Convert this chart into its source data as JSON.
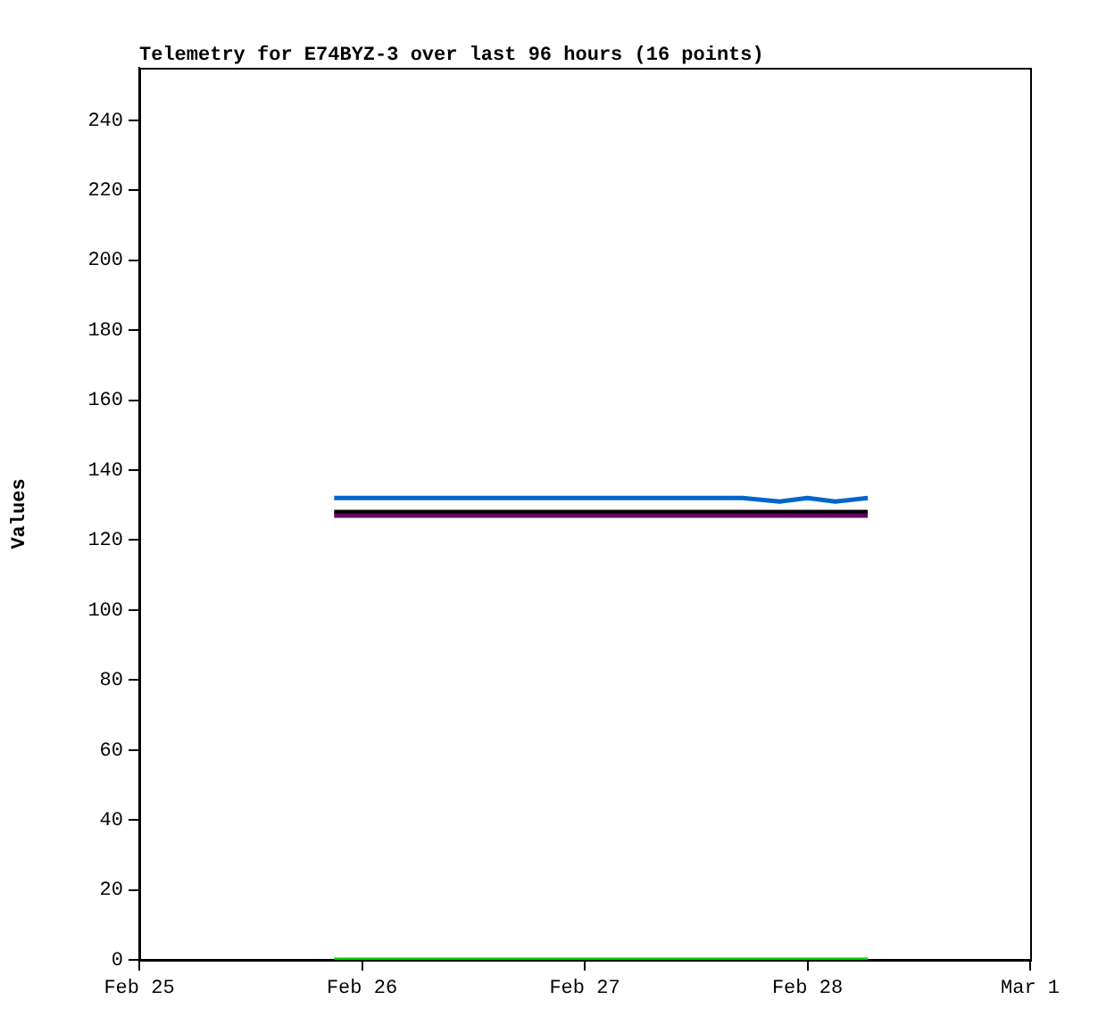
{
  "chart_data": {
    "type": "line",
    "title": "Telemetry for E74BYZ-3 over last 96 hours (16 points)",
    "ylabel": "Values",
    "x": [
      "--02-25T21:00",
      "--02-26T01:00",
      "--02-26T05:00",
      "--02-26T09:00",
      "--02-26T13:00",
      "--02-26T17:00",
      "--02-26T21:00",
      "--02-27T01:00",
      "--02-27T05:00",
      "--02-27T09:00",
      "--02-27T13:00",
      "--02-27T17:00",
      "--02-27T21:00",
      "--02-28T00:00",
      "--02-28T03:00",
      "--02-28T06:30"
    ],
    "series": [
      {
        "color": "#660066",
        "values": [
          127,
          127,
          127,
          127,
          127,
          127,
          127,
          127,
          127,
          127,
          127,
          127,
          127,
          127,
          127,
          127
        ]
      },
      {
        "color": "#000000",
        "values": [
          128,
          128,
          128,
          128,
          128,
          128,
          128,
          128,
          128,
          128,
          128,
          128,
          128,
          128,
          128,
          128
        ]
      },
      {
        "color": "#0066cc",
        "values": [
          132,
          132,
          132,
          132,
          132,
          132,
          132,
          132,
          132,
          132,
          132,
          132,
          131,
          132,
          131,
          132
        ]
      },
      {
        "color": "#00cc00",
        "values": [
          0,
          0,
          0,
          0,
          0,
          0,
          0,
          0,
          0,
          0,
          0,
          0,
          0,
          0,
          0,
          0
        ]
      }
    ],
    "xlim": [
      "--02-25",
      "--03-01"
    ],
    "xticks": [
      {
        "value": "--02-25",
        "label": "Feb 25"
      },
      {
        "value": "--02-26",
        "label": "Feb 26"
      },
      {
        "value": "--02-27",
        "label": "Feb 27"
      },
      {
        "value": "--02-28",
        "label": "Feb 28"
      },
      {
        "value": "--03-01",
        "label": "Mar 1"
      }
    ],
    "ylim": [
      0,
      255
    ],
    "yticks": [
      0,
      20,
      40,
      60,
      80,
      100,
      120,
      140,
      160,
      180,
      200,
      220,
      240
    ],
    "legend": false,
    "marker": "none",
    "line_style": "solid"
  }
}
